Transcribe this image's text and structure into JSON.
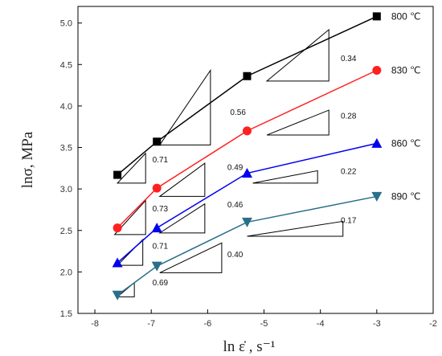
{
  "chart_data": {
    "type": "line",
    "xlabel": "ln ε̇ , s⁻¹",
    "ylabel": "lnσ, MPa",
    "xlim": [
      -8.3,
      -2
    ],
    "ylim": [
      1.5,
      5.2
    ],
    "x_ticks": [
      -8,
      -7,
      -6,
      -5,
      -4,
      -3,
      -2
    ],
    "y_ticks": [
      1.5,
      2.0,
      2.5,
      3.0,
      3.5,
      4.0,
      4.5,
      5.0
    ],
    "grid": false,
    "series": [
      {
        "name": "800 ℃",
        "color": "#000000",
        "marker": "square",
        "x": [
          -7.6,
          -6.9,
          -5.3,
          -3.0
        ],
        "y": [
          3.17,
          3.57,
          4.36,
          5.08
        ]
      },
      {
        "name": "830 ℃",
        "color": "#ff2020",
        "marker": "circle",
        "x": [
          -7.6,
          -6.9,
          -5.3,
          -3.0
        ],
        "y": [
          2.53,
          3.01,
          3.7,
          4.43
        ]
      },
      {
        "name": "860 ℃",
        "color": "#0000ee",
        "marker": "triangle-up",
        "x": [
          -7.6,
          -6.9,
          -5.3,
          -3.0
        ],
        "y": [
          2.11,
          2.53,
          3.19,
          3.55
        ]
      },
      {
        "name": "890 ℃",
        "color": "#2a6f8a",
        "marker": "triangle-down",
        "x": [
          -7.6,
          -6.9,
          -5.3,
          -3.0
        ],
        "y": [
          1.72,
          2.07,
          2.6,
          2.91
        ]
      }
    ],
    "slope_annotations": [
      {
        "label": "0.71",
        "x1": -7.6,
        "x2": -7.1,
        "y": 3.07,
        "h": 0.36,
        "lx": -6.98,
        "ly": 3.32
      },
      {
        "label": "0.56",
        "x1": -6.85,
        "x2": -5.95,
        "y": 3.53,
        "h": 0.9,
        "lx": -5.6,
        "ly": 3.89
      },
      {
        "label": "0.34",
        "x1": -4.95,
        "x2": -3.85,
        "y": 4.3,
        "h": 0.62,
        "lx": -3.64,
        "ly": 4.54
      },
      {
        "label": "0.73",
        "x1": -7.65,
        "x2": -7.1,
        "y": 2.45,
        "h": 0.41,
        "lx": -6.98,
        "ly": 2.73
      },
      {
        "label": "0.49",
        "x1": -6.85,
        "x2": -6.05,
        "y": 2.91,
        "h": 0.4,
        "lx": -5.65,
        "ly": 3.23
      },
      {
        "label": "0.28",
        "x1": -4.95,
        "x2": -3.85,
        "y": 3.65,
        "h": 0.3,
        "lx": -3.64,
        "ly": 3.85
      },
      {
        "label": "0.71",
        "x1": -7.6,
        "x2": -7.15,
        "y": 2.08,
        "h": 0.31,
        "lx": -6.98,
        "ly": 2.28
      },
      {
        "label": "0.46",
        "x1": -6.85,
        "x2": -6.05,
        "y": 2.47,
        "h": 0.35,
        "lx": -5.65,
        "ly": 2.78
      },
      {
        "label": "0.22",
        "x1": -5.2,
        "x2": -4.05,
        "y": 3.07,
        "h": 0.15,
        "lx": -3.64,
        "ly": 3.18
      },
      {
        "label": "0.69",
        "x1": -7.6,
        "x2": -7.3,
        "y": 1.7,
        "h": 0.17,
        "lx": -6.98,
        "ly": 1.84
      },
      {
        "label": "0.40",
        "x1": -6.85,
        "x2": -5.75,
        "y": 1.99,
        "h": 0.36,
        "lx": -5.65,
        "ly": 2.18
      },
      {
        "label": "0.17",
        "x1": -5.3,
        "x2": -3.6,
        "y": 2.43,
        "h": 0.18,
        "lx": -3.64,
        "ly": 2.59
      }
    ]
  }
}
